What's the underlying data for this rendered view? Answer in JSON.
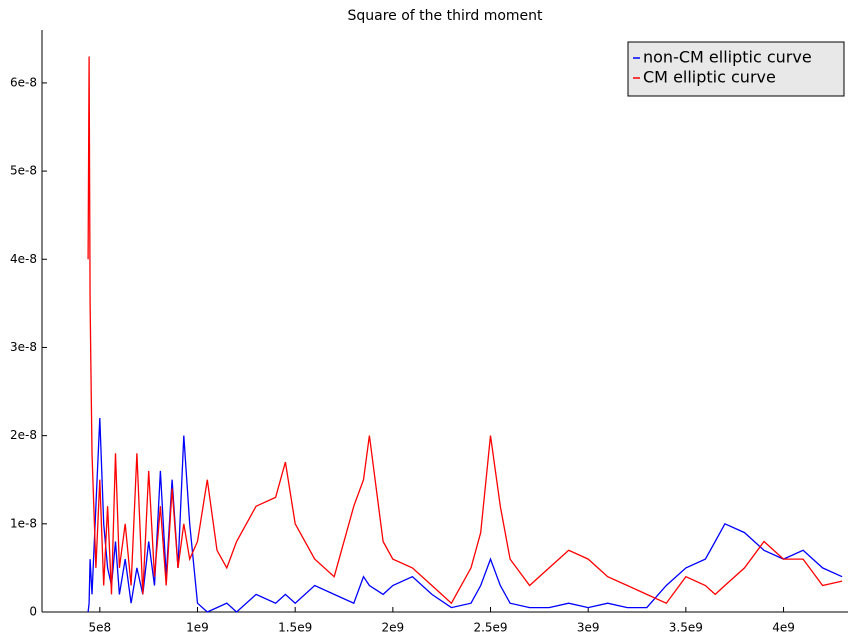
{
  "chart_data": {
    "type": "line",
    "title": "Square of the third moment",
    "x": [
      440000000.0,
      445000000.0,
      450000000.0,
      460000000.0,
      480000000.0,
      500000000.0,
      520000000.0,
      540000000.0,
      560000000.0,
      580000000.0,
      600000000.0,
      630000000.0,
      660000000.0,
      690000000.0,
      720000000.0,
      750000000.0,
      780000000.0,
      810000000.0,
      840000000.0,
      870000000.0,
      900000000.0,
      930000000.0,
      960000000.0,
      1000000000.0,
      1050000000.0,
      1100000000.0,
      1150000000.0,
      1200000000.0,
      1300000000.0,
      1400000000.0,
      1450000000.0,
      1500000000.0,
      1600000000.0,
      1700000000.0,
      1800000000.0,
      1850000000.0,
      1880000000.0,
      1950000000.0,
      2000000000.0,
      2100000000.0,
      2200000000.0,
      2300000000.0,
      2400000000.0,
      2450000000.0,
      2500000000.0,
      2550000000.0,
      2600000000.0,
      2700000000.0,
      2800000000.0,
      2900000000.0,
      3000000000.0,
      3100000000.0,
      3200000000.0,
      3300000000.0,
      3400000000.0,
      3500000000.0,
      3600000000.0,
      3650000000.0,
      3700000000.0,
      3800000000.0,
      3900000000.0,
      4000000000.0,
      4100000000.0,
      4200000000.0,
      4300000000.0
    ],
    "series": [
      {
        "name": "non-CM elliptic curve",
        "color": "#0000ff",
        "values": [
          0.0,
          1e-09,
          6e-09,
          2e-09,
          1.2e-08,
          2.2e-08,
          1e-08,
          5e-09,
          3e-09,
          8e-09,
          2e-09,
          6e-09,
          1e-09,
          5e-09,
          2e-09,
          8e-09,
          3e-09,
          1.6e-08,
          4e-09,
          1.5e-08,
          5e-09,
          2e-08,
          1e-08,
          1e-09,
          0.0,
          5e-10,
          1e-09,
          0.0,
          2e-09,
          1e-09,
          2e-09,
          1e-09,
          3e-09,
          2e-09,
          1e-09,
          4e-09,
          3e-09,
          2e-09,
          3e-09,
          4e-09,
          2e-09,
          5e-10,
          1e-09,
          3e-09,
          6e-09,
          3e-09,
          1e-09,
          5e-10,
          5e-10,
          1e-09,
          5e-10,
          1e-09,
          5e-10,
          5e-10,
          3e-09,
          5e-09,
          6e-09,
          8e-09,
          1e-08,
          9e-09,
          7e-09,
          6e-09,
          7e-09,
          5e-09,
          4e-09
        ]
      },
      {
        "name": "CM elliptic curve",
        "color": "#ff0000",
        "values": [
          4e-08,
          6.3e-08,
          3.5e-08,
          1.8e-08,
          5e-09,
          1.5e-08,
          3e-09,
          1.2e-08,
          2e-09,
          1.8e-08,
          5e-09,
          1e-08,
          3e-09,
          1.8e-08,
          2e-09,
          1.6e-08,
          4e-09,
          1.2e-08,
          3e-09,
          1.4e-08,
          5e-09,
          1e-08,
          6e-09,
          8e-09,
          1.5e-08,
          7e-09,
          5e-09,
          8e-09,
          1.2e-08,
          1.3e-08,
          1.7e-08,
          1e-08,
          6e-09,
          4e-09,
          1.2e-08,
          1.5e-08,
          2e-08,
          8e-09,
          6e-09,
          5e-09,
          3e-09,
          1e-09,
          5e-09,
          9e-09,
          2e-08,
          1.2e-08,
          6e-09,
          3e-09,
          5e-09,
          7e-09,
          6e-09,
          4e-09,
          3e-09,
          2e-09,
          1e-09,
          4e-09,
          3e-09,
          2e-09,
          3e-09,
          5e-09,
          8e-09,
          6e-09,
          6e-09,
          3e-09,
          3.5e-09
        ]
      }
    ],
    "xlim": [
      204000000.0,
      4330000000.0
    ],
    "xticks": [
      {
        "value": 500000000.0,
        "label": "5e8"
      },
      {
        "value": 1000000000.0,
        "label": "1e9"
      },
      {
        "value": 1500000000.0,
        "label": "1.5e9"
      },
      {
        "value": 2000000000.0,
        "label": "2e9"
      },
      {
        "value": 2500000000.0,
        "label": "2.5e9"
      },
      {
        "value": 3000000000.0,
        "label": "3e9"
      },
      {
        "value": 3500000000.0,
        "label": "3.5e9"
      },
      {
        "value": 4000000000.0,
        "label": "4e9"
      }
    ],
    "ylim": [
      0,
      6.6e-08
    ],
    "yticks": [
      0,
      {
        "value": 1e-08,
        "label": "1e-8"
      },
      {
        "value": 2e-08,
        "label": "2e-8"
      },
      {
        "value": 3e-08,
        "label": "3e-8"
      },
      {
        "value": 4e-08,
        "label": "4e-8"
      },
      {
        "value": 5e-08,
        "label": "5e-8"
      },
      {
        "value": 6e-08,
        "label": "6e-8"
      }
    ],
    "legend": "upper-right"
  }
}
